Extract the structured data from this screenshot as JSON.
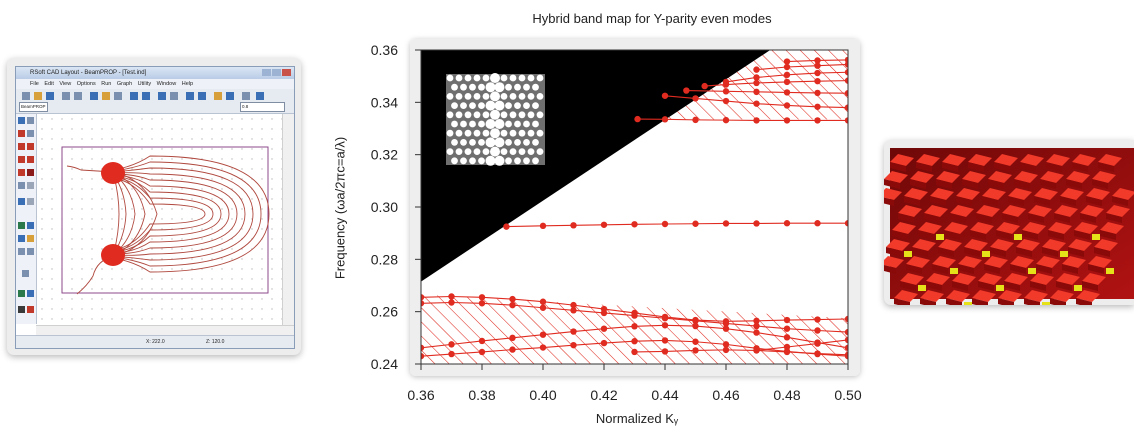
{
  "cad_window": {
    "title": "RSoft CAD Layout - BeamPROP - [Test.ind]",
    "menu": "File Edit View Options Run Graph Utility Window Help",
    "tool_select": "BeamPROP",
    "zoom_value": "0.8",
    "status_x": "X: 222.0",
    "status_z": "Z: 120.0"
  },
  "chart_data": {
    "type": "scatter",
    "title": "Hybrid band map for Y-parity even modes",
    "xlabel": "Normalized Kᵧ",
    "ylabel": "Frequency (ωa/2πc=a/λ)",
    "xlim": [
      0.36,
      0.5
    ],
    "ylim": [
      0.24,
      0.36
    ],
    "x_ticks": [
      "0.36",
      "0.38",
      "0.40",
      "0.42",
      "0.44",
      "0.46",
      "0.48",
      "0.50"
    ],
    "y_ticks": [
      "0.24",
      "0.26",
      "0.28",
      "0.30",
      "0.32",
      "0.34",
      "0.36"
    ],
    "light_line": [
      [
        0.36,
        0.2715
      ],
      [
        0.4745,
        0.36
      ]
    ],
    "series": [
      {
        "x": [
          0.388,
          0.4,
          0.41,
          0.42,
          0.43,
          0.44,
          0.45,
          0.46,
          0.47,
          0.48,
          0.49,
          0.5
        ],
        "y": [
          0.2925,
          0.2928,
          0.293,
          0.2932,
          0.2934,
          0.2935,
          0.2936,
          0.2937,
          0.2937,
          0.2938,
          0.2938,
          0.2938
        ]
      },
      {
        "x": [
          0.36,
          0.37,
          0.38,
          0.39,
          0.4,
          0.41,
          0.42,
          0.43,
          0.44,
          0.45,
          0.46,
          0.47,
          0.48,
          0.49,
          0.5
        ],
        "y": [
          0.2655,
          0.2658,
          0.2655,
          0.2648,
          0.2638,
          0.2625,
          0.261,
          0.2595,
          0.258,
          0.2568,
          0.2563,
          0.2565,
          0.2568,
          0.257,
          0.2572
        ]
      },
      {
        "x": [
          0.36,
          0.37,
          0.38,
          0.39,
          0.4,
          0.41,
          0.42,
          0.43,
          0.44,
          0.45,
          0.46,
          0.47,
          0.48,
          0.49,
          0.5
        ],
        "y": [
          0.2632,
          0.2635,
          0.2632,
          0.2625,
          0.2615,
          0.2605,
          0.2595,
          0.2585,
          0.2575,
          0.2565,
          0.2555,
          0.2545,
          0.2535,
          0.2528,
          0.2522
        ]
      },
      {
        "x": [
          0.36,
          0.37,
          0.38,
          0.39,
          0.4,
          0.41,
          0.42,
          0.43,
          0.44,
          0.45,
          0.46,
          0.47,
          0.48,
          0.49,
          0.5
        ],
        "y": [
          0.2462,
          0.2475,
          0.2488,
          0.25,
          0.2512,
          0.2524,
          0.2535,
          0.2544,
          0.2548,
          0.2545,
          0.2535,
          0.252,
          0.2502,
          0.2482,
          0.2462
        ]
      },
      {
        "x": [
          0.36,
          0.37,
          0.38,
          0.39,
          0.4,
          0.41,
          0.42,
          0.43,
          0.44,
          0.45,
          0.46,
          0.47,
          0.48,
          0.49,
          0.5
        ],
        "y": [
          0.243,
          0.2438,
          0.2446,
          0.2455,
          0.2463,
          0.2472,
          0.248,
          0.2487,
          0.249,
          0.2485,
          0.2475,
          0.246,
          0.2448,
          0.2438,
          0.243
        ]
      },
      {
        "x": [
          0.43,
          0.44,
          0.45,
          0.46,
          0.47,
          0.48,
          0.49,
          0.5
        ],
        "y": [
          0.2446,
          0.2448,
          0.2452,
          0.2454,
          0.2452,
          0.2446,
          0.244,
          0.2435
        ]
      },
      {
        "x": [
          0.47,
          0.48,
          0.49,
          0.5
        ],
        "y": [
          0.2452,
          0.2465,
          0.2478,
          0.2492
        ]
      },
      {
        "x": [
          0.431,
          0.44,
          0.45,
          0.46,
          0.47,
          0.48,
          0.49,
          0.5
        ],
        "y": [
          0.3336,
          0.3335,
          0.3333,
          0.3332,
          0.3331,
          0.3331,
          0.3331,
          0.3331
        ]
      },
      {
        "x": [
          0.44,
          0.45,
          0.46,
          0.47,
          0.48,
          0.49,
          0.5
        ],
        "y": [
          0.3425,
          0.3415,
          0.3405,
          0.3395,
          0.3388,
          0.3383,
          0.338
        ]
      },
      {
        "x": [
          0.447,
          0.46,
          0.47,
          0.48,
          0.49,
          0.5
        ],
        "y": [
          0.3445,
          0.3442,
          0.344,
          0.3438,
          0.3436,
          0.3435
        ]
      },
      {
        "x": [
          0.453,
          0.46,
          0.47,
          0.48,
          0.49,
          0.5
        ],
        "y": [
          0.3462,
          0.3468,
          0.3474,
          0.3478,
          0.3481,
          0.3483
        ]
      },
      {
        "x": [
          0.46,
          0.47,
          0.48,
          0.49,
          0.5
        ],
        "y": [
          0.3478,
          0.3495,
          0.3505,
          0.3512,
          0.3515
        ]
      },
      {
        "x": [
          0.47,
          0.48,
          0.49,
          0.5
        ],
        "y": [
          0.3525,
          0.3535,
          0.354,
          0.3545
        ]
      },
      {
        "x": [
          0.48,
          0.49,
          0.5
        ],
        "y": [
          0.3556,
          0.356,
          0.3562
        ]
      }
    ],
    "hatched_bands": [
      [
        0.36,
        0.2665,
        0.5,
        0.2575
      ],
      [
        0.431,
        0.3335,
        0.5,
        0.3335
      ]
    ],
    "grid": false,
    "legend": "none"
  },
  "colors": {
    "accent": "#e02b20",
    "light_cone": "#000000",
    "axes": "#333333"
  }
}
